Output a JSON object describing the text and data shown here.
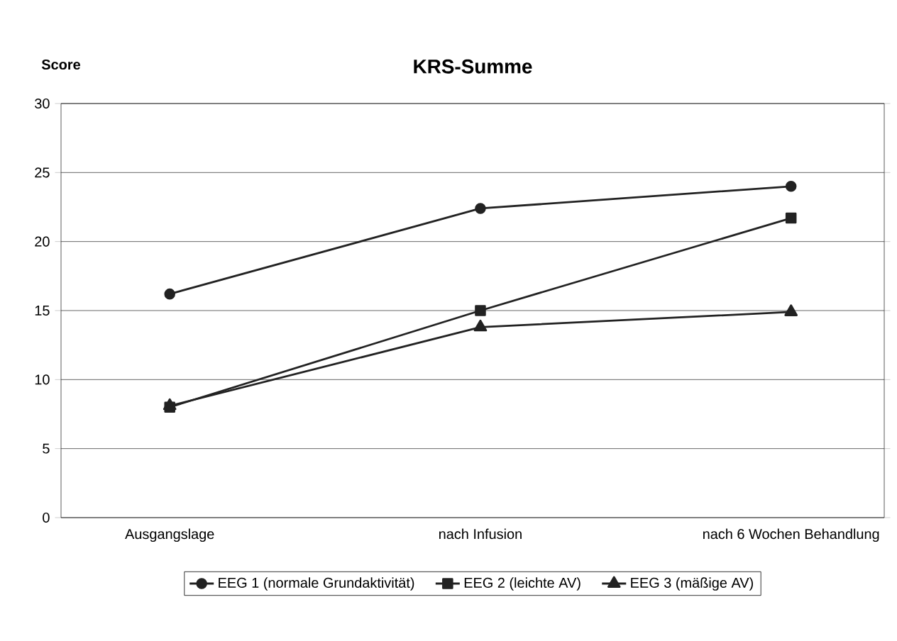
{
  "chart_data": {
    "type": "line",
    "title": "KRS-Summe",
    "ylabel": "Score",
    "categories": [
      "Ausgangslage",
      "nach Infusion",
      "nach 6 Wochen Behandlung"
    ],
    "series": [
      {
        "name": "EEG 1 (normale Grundaktivität)",
        "color": "#222222",
        "marker": "circle",
        "values": [
          16.2,
          22.4,
          24
        ]
      },
      {
        "name": "EEG 2 (leichte AV)",
        "color": "#222222",
        "marker": "square",
        "values": [
          8,
          15,
          21.7
        ]
      },
      {
        "name": "EEG 3 (mäßige AV)",
        "color": "#222222",
        "marker": "triangle",
        "values": [
          8.1,
          13.8,
          14.9
        ]
      }
    ],
    "ylim": [
      0,
      30
    ],
    "yticks": [
      0,
      5,
      10,
      15,
      20,
      25,
      30
    ],
    "grid": "y",
    "legend": "bottom",
    "line_style": "solid"
  }
}
